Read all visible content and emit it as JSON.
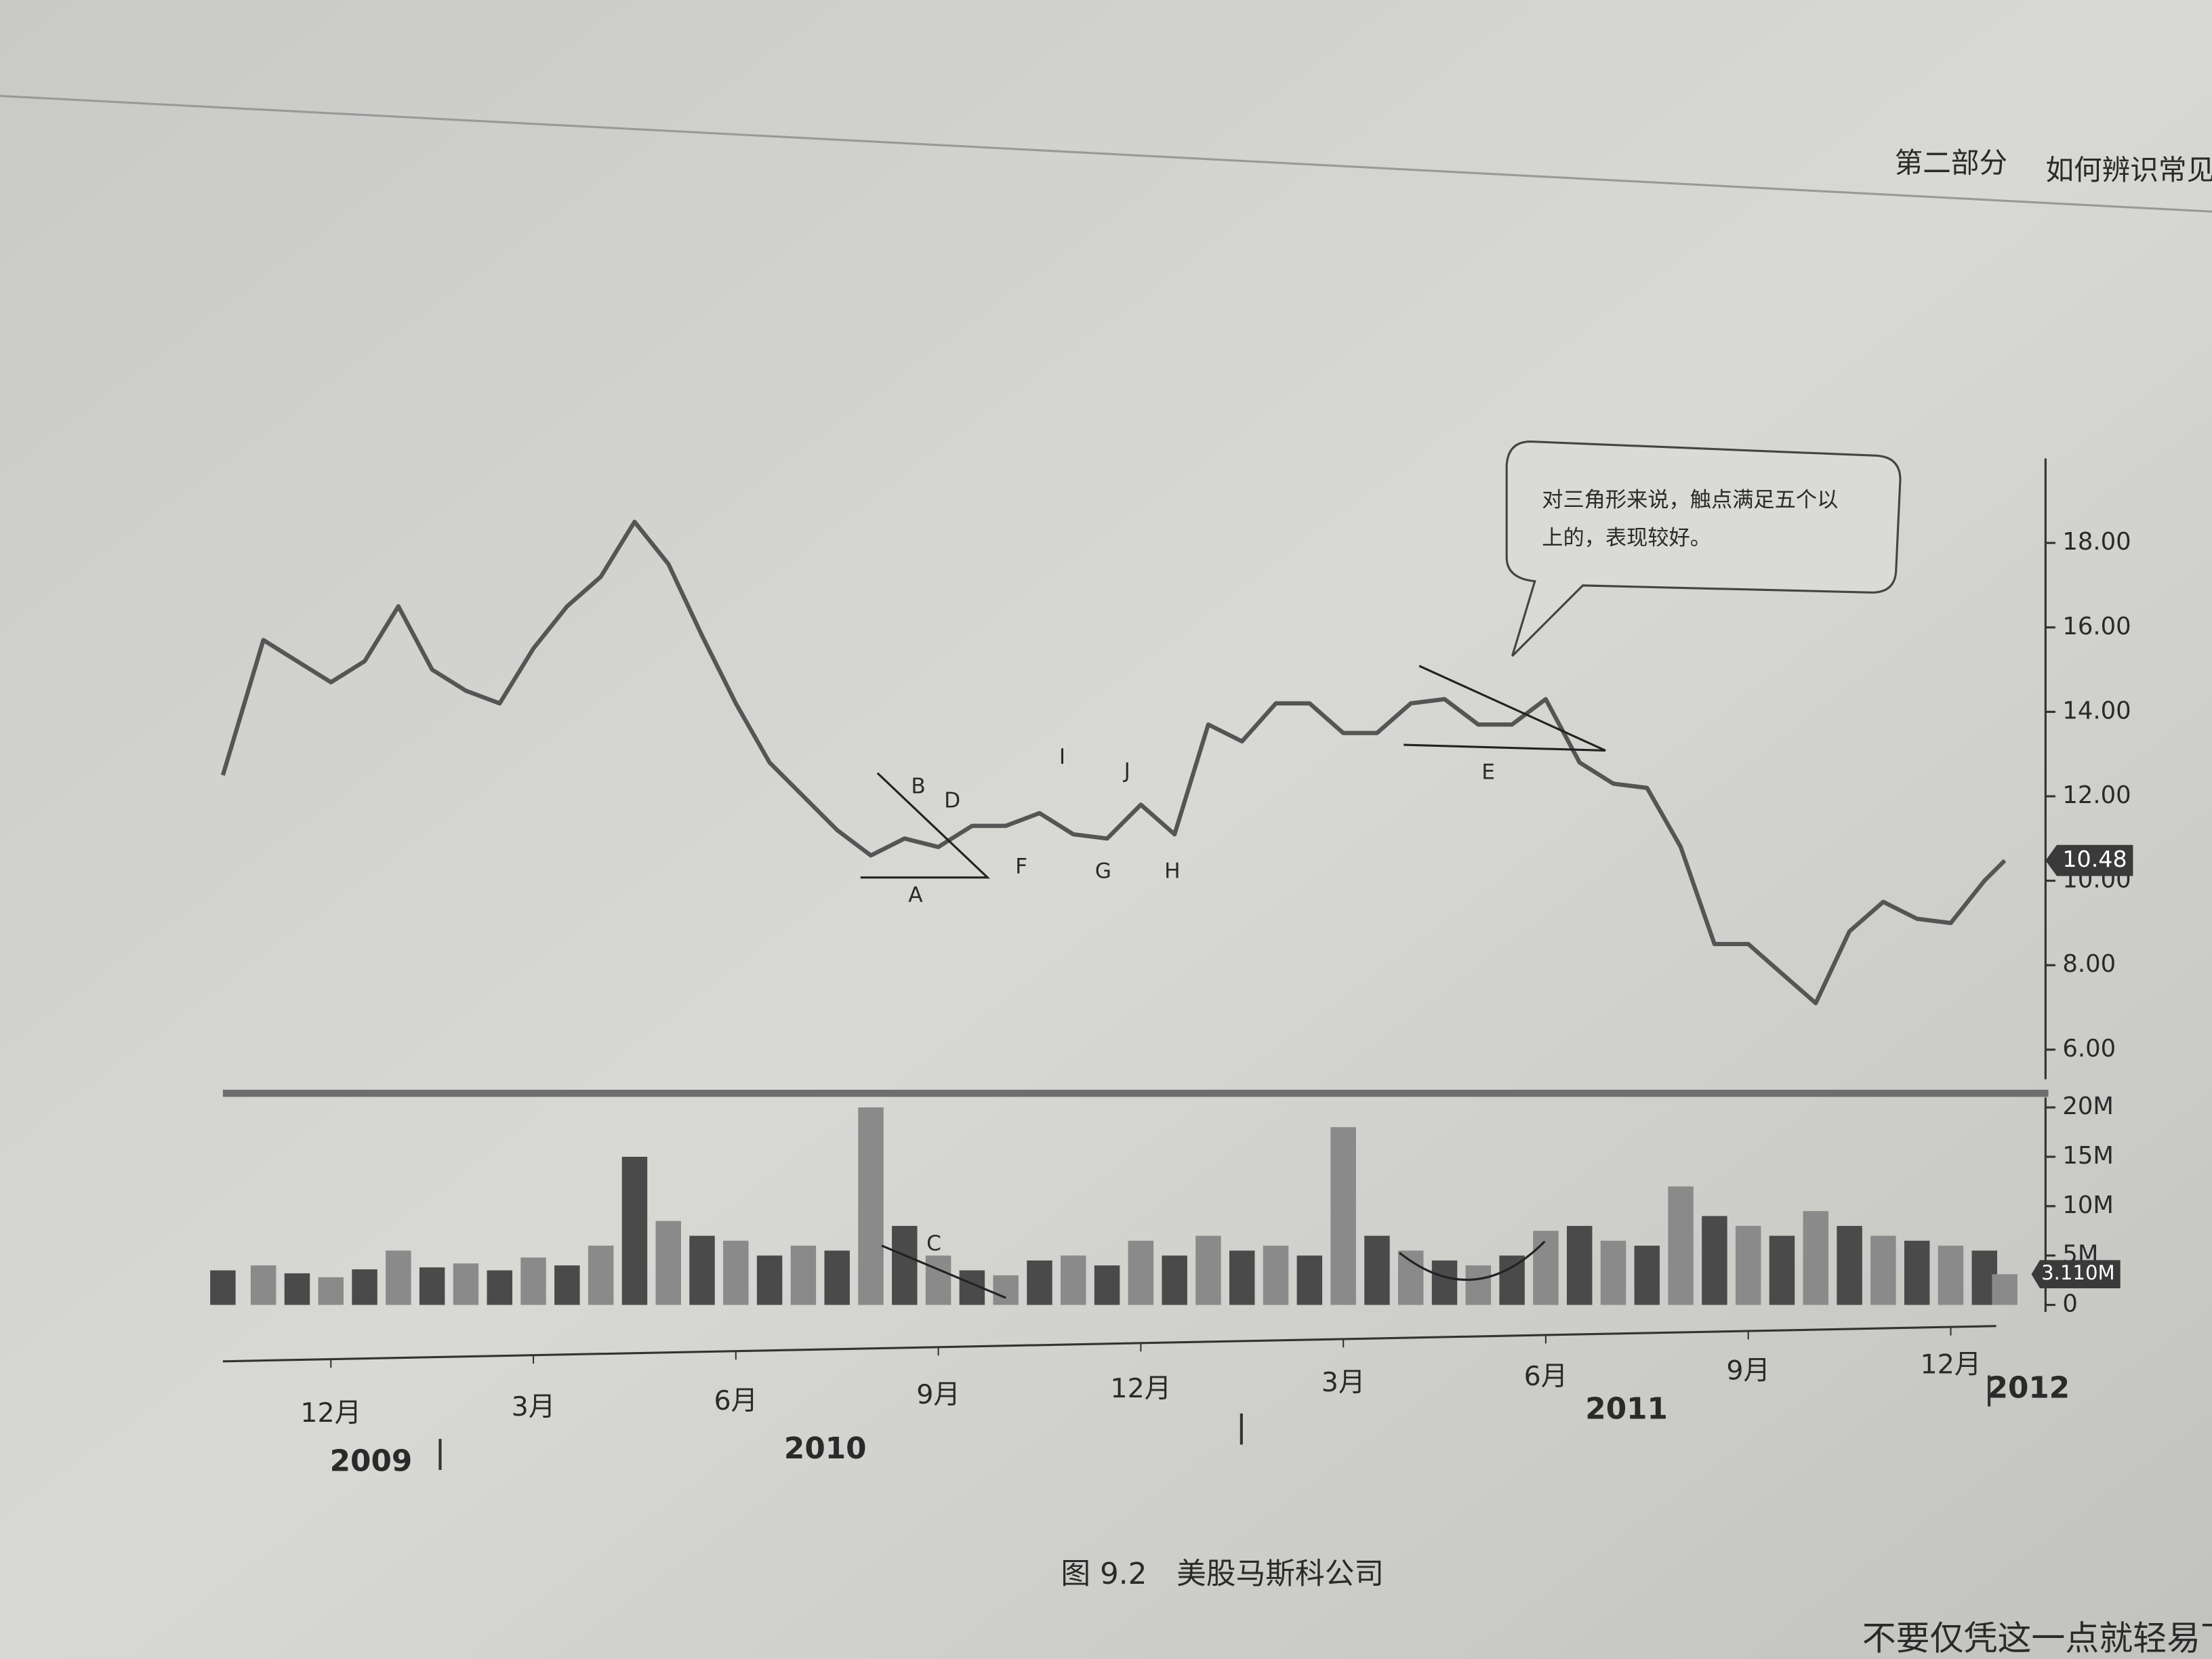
{
  "header": {
    "part": "第二部分",
    "title": "如何辨识常见"
  },
  "caption": "图 9.2　美股马斯科公司",
  "footer_text": "不要仅凭这一点就轻易下结论。",
  "chart_data": [
    {
      "type": "line",
      "color": "#555555",
      "xlim": [
        -1.6,
        25.3
      ],
      "ylim": [
        5.3,
        20.0
      ],
      "yticks": [
        {
          "value": 18,
          "label": "18.00"
        },
        {
          "value": 16,
          "label": "16.00"
        },
        {
          "value": 14,
          "label": "14.00"
        },
        {
          "value": 12,
          "label": "12.00"
        },
        {
          "value": 10,
          "label": "10.00"
        },
        {
          "value": 8,
          "label": "8.00"
        },
        {
          "value": 6,
          "label": "6.00"
        }
      ],
      "x": [
        -1.6,
        -1.0,
        -0.5,
        0,
        0.5,
        1.0,
        1.5,
        2.0,
        2.5,
        3.0,
        3.5,
        4.0,
        4.5,
        5.0,
        5.5,
        6.0,
        6.5,
        7.0,
        7.5,
        8.0,
        8.5,
        9.0,
        9.5,
        10.0,
        10.5,
        11.0,
        11.5,
        12.0,
        12.5,
        13.0,
        13.5,
        14.0,
        14.5,
        15.0,
        15.5,
        16.0,
        16.5,
        17.0,
        17.5,
        18.0,
        18.5,
        19.0,
        19.5,
        20.0,
        20.5,
        21.0,
        21.5,
        22.0,
        22.5,
        23.0,
        23.5,
        24.0,
        24.5,
        24.8
      ],
      "values": [
        12.5,
        15.7,
        15.2,
        14.7,
        15.2,
        16.5,
        15.0,
        14.5,
        14.2,
        15.5,
        16.5,
        17.2,
        18.5,
        17.5,
        15.8,
        14.2,
        12.8,
        12.0,
        11.2,
        10.6,
        11.0,
        10.8,
        11.3,
        11.3,
        11.6,
        11.1,
        11.0,
        11.8,
        11.1,
        13.7,
        13.3,
        14.2,
        14.2,
        13.5,
        13.5,
        14.2,
        14.3,
        13.7,
        13.7,
        14.3,
        12.8,
        12.3,
        12.2,
        10.8,
        8.5,
        8.5,
        7.8,
        7.1,
        8.8,
        9.5,
        9.1,
        9.0,
        10.0,
        10.48
      ],
      "last_value": 10.48,
      "labels": [
        "A",
        "B",
        "C",
        "D",
        "E",
        "F",
        "G",
        "H",
        "I",
        "J"
      ],
      "annotation": "对三角形来说，触点满足五个以上的，表现较好。"
    },
    {
      "type": "bar",
      "color": "#4a4a4a",
      "xlim": [
        -1.6,
        25.3
      ],
      "ylim": [
        0,
        22
      ],
      "yticks": [
        {
          "value": 20,
          "label": "20M"
        },
        {
          "value": 15,
          "label": "15M"
        },
        {
          "value": 10,
          "label": "10M"
        },
        {
          "value": 5,
          "label": "5M"
        },
        0
      ],
      "xticks": [
        {
          "value": 0,
          "label": "12月"
        },
        {
          "value": 3,
          "label": "3月"
        },
        {
          "value": 6,
          "label": "6月"
        },
        {
          "value": 9,
          "label": "9月"
        },
        {
          "value": 12,
          "label": "12月"
        },
        {
          "value": 15,
          "label": "3月"
        },
        {
          "value": 18,
          "label": "6月"
        },
        {
          "value": 21,
          "label": "9月"
        },
        {
          "value": 24,
          "label": "12月"
        }
      ],
      "years": [
        "2009",
        "2010",
        "2011",
        "2012"
      ],
      "x": [
        -1.6,
        -1.0,
        -0.5,
        0,
        0.5,
        1.0,
        1.5,
        2.0,
        2.5,
        3.0,
        3.5,
        4.0,
        4.5,
        5.0,
        5.5,
        6.0,
        6.5,
        7.0,
        7.5,
        8.0,
        8.5,
        9.0,
        9.5,
        10.0,
        10.5,
        11.0,
        11.5,
        12.0,
        12.5,
        13.0,
        13.5,
        14.0,
        14.5,
        15.0,
        15.5,
        16.0,
        16.5,
        17.0,
        17.5,
        18.0,
        18.5,
        19.0,
        19.5,
        20.0,
        20.5,
        21.0,
        21.5,
        22.0,
        22.5,
        23.0,
        23.5,
        24.0,
        24.5,
        24.8
      ],
      "values": [
        3.5,
        4.0,
        3.2,
        2.8,
        3.6,
        5.5,
        3.8,
        4.2,
        3.5,
        4.8,
        4.0,
        6.0,
        15.0,
        8.5,
        7.0,
        6.5,
        5.0,
        6.0,
        5.5,
        20.0,
        8.0,
        5.0,
        3.5,
        3.0,
        4.5,
        5.0,
        4.0,
        6.5,
        5.0,
        7.0,
        5.5,
        6.0,
        5.0,
        18.0,
        7.0,
        5.5,
        4.5,
        4.0,
        5.0,
        7.5,
        8.0,
        6.5,
        6.0,
        12.0,
        9.0,
        8.0,
        7.0,
        9.5,
        8.0,
        7.0,
        6.5,
        6.0,
        5.5,
        3.11
      ],
      "last_value": 3.11,
      "last_label": "3.110M"
    }
  ]
}
